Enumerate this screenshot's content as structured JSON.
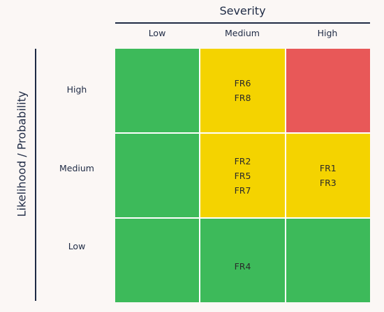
{
  "severity_title": "Severity",
  "likelihood_title": "Likelihood / Probability",
  "columns": [
    "Low",
    "Medium",
    "High"
  ],
  "rows": [
    "High",
    "Medium",
    "Low"
  ],
  "colors": {
    "green": "#3dba5a",
    "yellow": "#f4d300",
    "red": "#e85858",
    "text": "#1e2a44"
  },
  "cells": [
    [
      {
        "color": "green",
        "items": []
      },
      {
        "color": "yellow",
        "items": [
          "FR6",
          "FR8"
        ]
      },
      {
        "color": "red",
        "items": []
      }
    ],
    [
      {
        "color": "green",
        "items": []
      },
      {
        "color": "yellow",
        "items": [
          "FR2",
          "FR5",
          "FR7"
        ]
      },
      {
        "color": "yellow",
        "items": [
          "FR1",
          "FR3"
        ]
      }
    ],
    [
      {
        "color": "green",
        "items": []
      },
      {
        "color": "green",
        "items": [
          "FR4"
        ]
      },
      {
        "color": "green",
        "items": []
      }
    ]
  ]
}
